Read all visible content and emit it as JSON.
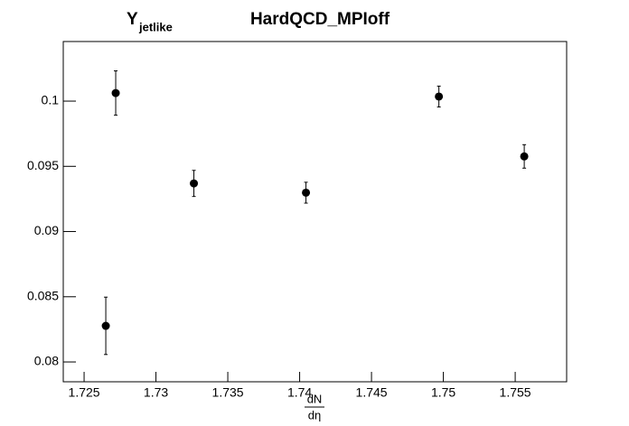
{
  "chart_data": {
    "type": "scatter",
    "title": "HardQCD_MPIoff",
    "y_label": "Y",
    "y_label_subscript": "jetlike",
    "x_label_numerator": "dN",
    "x_label_denominator": "dη",
    "x": [
      1.72651,
      1.7272,
      1.73264,
      1.74044,
      1.74969,
      1.75563
    ],
    "values": [
      0.08277,
      0.10062,
      0.09369,
      0.09298,
      0.10035,
      0.09576
    ],
    "errors": [
      0.0022,
      0.0017,
      0.001,
      0.0008,
      0.0008,
      0.0009
    ],
    "color": "#000000",
    "xlim": [
      1.72355,
      1.75858
    ],
    "ylim": [
      0.07848,
      0.10457
    ],
    "xticks": [
      1.725,
      1.73,
      1.735,
      1.74,
      1.745,
      1.75,
      1.755
    ],
    "yticks": [
      0.08,
      0.085,
      0.09,
      0.095,
      0.1
    ],
    "grid": false
  }
}
